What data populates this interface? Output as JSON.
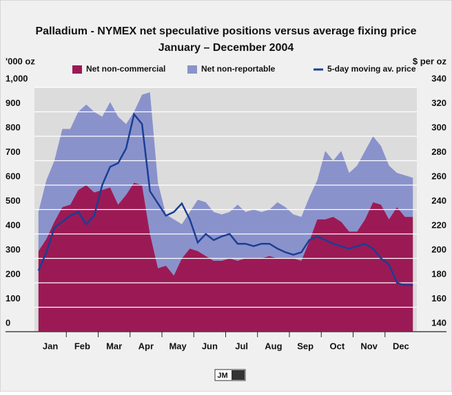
{
  "chart_data": {
    "type": "stacked_area_line",
    "title": "Palladium - NYMEX net speculative positions versus average fixing price",
    "subtitle": "January – December 2004",
    "y_label": "'000 oz",
    "y2_label": "$ per oz",
    "logo": "JM",
    "categories": [
      "Jan",
      null,
      null,
      null,
      "Feb",
      null,
      null,
      null,
      "Mar",
      null,
      null,
      null,
      "Apr",
      null,
      null,
      null,
      "May",
      null,
      null,
      null,
      "Jun",
      null,
      null,
      null,
      "Jul",
      null,
      null,
      null,
      "Aug",
      null,
      null,
      null,
      "Sep",
      null,
      null,
      null,
      "Oct",
      null,
      null,
      null,
      "Nov",
      null,
      null,
      null,
      "Dec",
      null,
      null,
      null
    ],
    "series": [
      {
        "name": "Net non-commercial",
        "color": "#9b1a55",
        "values": [
          330,
          380,
          450,
          510,
          520,
          580,
          600,
          570,
          580,
          590,
          520,
          560,
          610,
          600,
          400,
          260,
          270,
          230,
          300,
          340,
          330,
          310,
          290,
          290,
          300,
          290,
          300,
          300,
          300,
          310,
          300,
          300,
          300,
          290,
          370,
          460,
          460,
          470,
          450,
          410,
          410,
          460,
          530,
          520,
          460,
          510,
          470,
          470
        ]
      },
      {
        "name": "Net non-reportable",
        "color": "#8a92cc",
        "values": [
          160,
          240,
          250,
          320,
          310,
          320,
          330,
          330,
          300,
          350,
          360,
          290,
          290,
          370,
          580,
          350,
          210,
          230,
          140,
          150,
          210,
          220,
          200,
          190,
          190,
          230,
          190,
          200,
          190,
          190,
          230,
          210,
          180,
          180,
          180,
          160,
          280,
          230,
          290,
          240,
          270,
          280,
          270,
          240,
          220,
          140,
          170,
          160
        ]
      },
      {
        "name": "5-day moving av. price",
        "color": "#1a3e94",
        "axis": "y2",
        "values": [
          190,
          205,
          225,
          230,
          235,
          238,
          228,
          235,
          260,
          275,
          278,
          290,
          318,
          310,
          255,
          245,
          235,
          238,
          245,
          232,
          213,
          220,
          215,
          218,
          220,
          212,
          212,
          210,
          212,
          212,
          208,
          205,
          203,
          205,
          215,
          218,
          215,
          212,
          210,
          208,
          210,
          212,
          208,
          200,
          195,
          180,
          178,
          178
        ]
      }
    ],
    "ylim": [
      0,
      1000
    ],
    "yticks": [
      0,
      100,
      200,
      300,
      400,
      500,
      600,
      700,
      800,
      900,
      {
        "value": 1000,
        "label": "1,000"
      }
    ],
    "y2lim": [
      140,
      340
    ],
    "y2ticks": [
      140,
      160,
      180,
      200,
      220,
      240,
      260,
      280,
      300,
      320,
      340
    ],
    "grid": true,
    "legend": "top"
  }
}
